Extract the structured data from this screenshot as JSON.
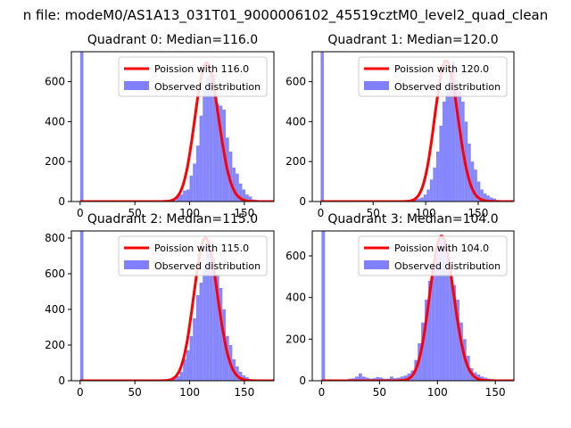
{
  "figure": {
    "suptitle": "n file: modeM0/AS1A13_031T01_9000006102_45519cztM0_level2_quad_clean"
  },
  "colors": {
    "observed": "#8080ff",
    "poisson": "#ff0000",
    "axes": "#000000"
  },
  "chart_data": [
    {
      "type": "bar",
      "title": "Quadrant 0: Median=116.0",
      "xlim": [
        -8,
        177
      ],
      "ylim": [
        0,
        750
      ],
      "xticks": [
        0,
        50,
        100,
        150
      ],
      "yticks": [
        0,
        200,
        400,
        600
      ],
      "median": 116.0,
      "legend": {
        "position": "top-right",
        "entries": [
          "Poission with 116.0",
          "Observed distribution"
        ]
      },
      "zero_bin_height": 750,
      "observed": {
        "bin_width": 3.0,
        "x": [
          76,
          79,
          82,
          85,
          88,
          91,
          94,
          97,
          100,
          103,
          106,
          109,
          112,
          115,
          118,
          121,
          124,
          127,
          130,
          133,
          136,
          139,
          142,
          145,
          148,
          151,
          154,
          157,
          160,
          163,
          166,
          169
        ],
        "values": [
          2,
          3,
          4,
          5,
          30,
          35,
          55,
          60,
          130,
          190,
          280,
          430,
          560,
          620,
          680,
          640,
          490,
          480,
          460,
          320,
          250,
          170,
          140,
          90,
          60,
          35,
          25,
          10,
          8,
          4,
          3,
          2
        ]
      },
      "poisson_peak": 695
    },
    {
      "type": "bar",
      "title": "Quadrant 1: Median=120.0",
      "xlim": [
        -8,
        184
      ],
      "ylim": [
        0,
        750
      ],
      "xticks": [
        0,
        50,
        100,
        150
      ],
      "yticks": [
        0,
        200,
        400,
        600
      ],
      "median": 120.0,
      "legend": {
        "position": "top-right",
        "entries": [
          "Poission with 120.0",
          "Observed distribution"
        ]
      },
      "zero_bin_height": 750,
      "observed": {
        "bin_width": 3.0,
        "x": [
          80,
          83,
          86,
          89,
          92,
          95,
          98,
          101,
          104,
          107,
          110,
          113,
          116,
          119,
          122,
          125,
          128,
          131,
          134,
          137,
          140,
          143,
          146,
          149,
          152,
          155,
          158,
          161,
          164,
          167,
          170,
          173,
          176
        ],
        "values": [
          2,
          3,
          5,
          10,
          15,
          20,
          35,
          60,
          110,
          170,
          250,
          380,
          500,
          560,
          640,
          700,
          610,
          550,
          500,
          400,
          290,
          200,
          160,
          100,
          60,
          40,
          30,
          20,
          15,
          8,
          5,
          3,
          2
        ]
      },
      "poisson_peak": 705
    },
    {
      "type": "bar",
      "title": "Quadrant 2: Median=115.0",
      "xlim": [
        -8,
        177
      ],
      "ylim": [
        0,
        840
      ],
      "xticks": [
        0,
        50,
        100,
        150
      ],
      "yticks": [
        0,
        200,
        400,
        600,
        800
      ],
      "median": 115.0,
      "legend": {
        "position": "top-right",
        "entries": [
          "Poission with 115.0",
          "Observed distribution"
        ]
      },
      "zero_bin_height": 840,
      "observed": {
        "bin_width": 3.0,
        "x": [
          73,
          76,
          79,
          82,
          85,
          88,
          91,
          94,
          97,
          100,
          103,
          106,
          109,
          112,
          115,
          118,
          121,
          124,
          127,
          130,
          133,
          136,
          139,
          142,
          145,
          148,
          151,
          154,
          157,
          160,
          163
        ],
        "values": [
          2,
          3,
          5,
          10,
          15,
          25,
          50,
          120,
          170,
          250,
          350,
          480,
          550,
          640,
          760,
          780,
          680,
          600,
          520,
          400,
          250,
          200,
          120,
          80,
          50,
          30,
          20,
          10,
          5,
          3,
          2
        ]
      },
      "poisson_peak": 800
    },
    {
      "type": "bar",
      "title": "Quadrant 3: Median=104.0",
      "xlim": [
        -8,
        166
      ],
      "ylim": [
        0,
        720
      ],
      "xticks": [
        0,
        50,
        100,
        150
      ],
      "yticks": [
        0,
        200,
        400,
        600
      ],
      "median": 104.0,
      "legend": {
        "position": "top-right",
        "entries": [
          "Poission with 104.0",
          "Observed distribution"
        ]
      },
      "zero_bin_height": 720,
      "observed": {
        "bin_width": 3.0,
        "x": [
          20,
          23,
          26,
          29,
          32,
          35,
          38,
          41,
          44,
          47,
          50,
          53,
          56,
          59,
          62,
          65,
          68,
          71,
          74,
          77,
          80,
          83,
          86,
          89,
          92,
          95,
          98,
          101,
          104,
          107,
          110,
          113,
          116,
          119,
          122,
          125,
          128,
          131,
          134,
          137,
          140,
          143,
          146,
          149,
          152,
          155
        ],
        "values": [
          5,
          10,
          12,
          20,
          35,
          20,
          15,
          10,
          12,
          18,
          15,
          10,
          10,
          20,
          12,
          15,
          20,
          25,
          35,
          50,
          100,
          180,
          280,
          390,
          480,
          560,
          620,
          690,
          680,
          600,
          560,
          460,
          390,
          280,
          200,
          120,
          60,
          40,
          30,
          20,
          15,
          10,
          8,
          5,
          3,
          2
        ]
      },
      "poisson_peak": 695
    }
  ]
}
